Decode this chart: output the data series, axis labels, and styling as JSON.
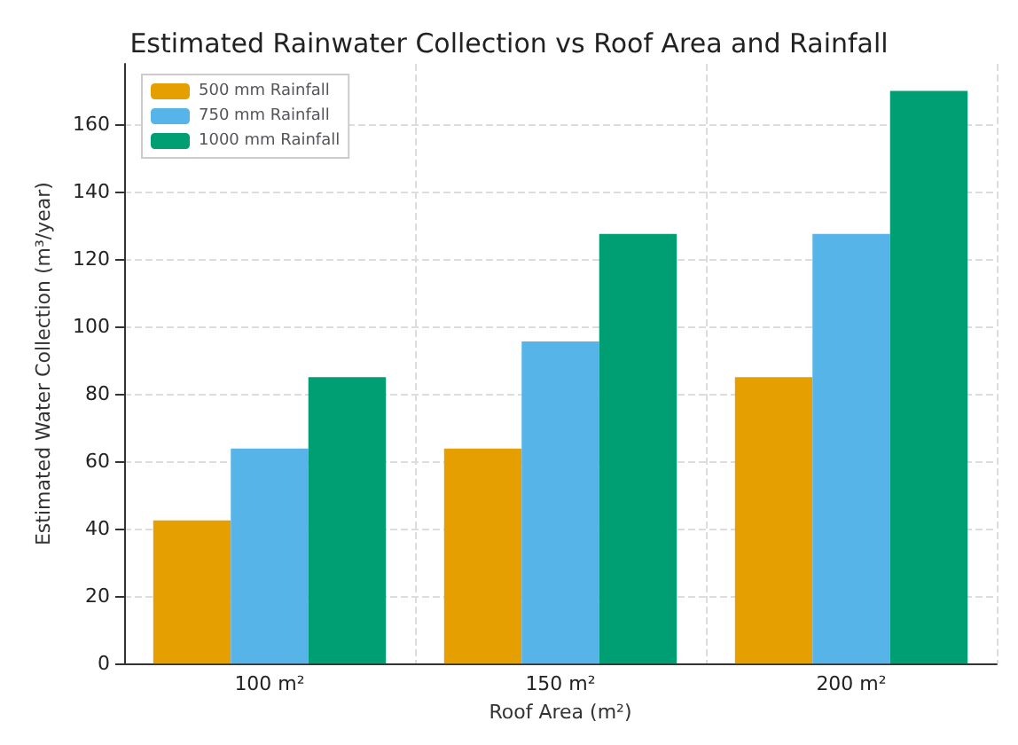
{
  "chart_data": {
    "type": "bar",
    "title": "Estimated Rainwater Collection vs Roof Area and Rainfall",
    "xlabel": "Roof Area (m²)",
    "ylabel": "Estimated Water Collection (m³/year)",
    "categories": [
      "100 m²",
      "150 m²",
      "200 m²"
    ],
    "series": [
      {
        "name": "500 mm Rainfall",
        "color": "#e69f00",
        "values": [
          42.5,
          63.8,
          85
        ]
      },
      {
        "name": "750 mm Rainfall",
        "color": "#56b4e9",
        "values": [
          63.8,
          95.6,
          127.5
        ]
      },
      {
        "name": "1000 mm Rainfall",
        "color": "#009e73",
        "values": [
          85,
          127.5,
          170
        ]
      }
    ],
    "ylim": [
      0,
      178
    ],
    "yticks": [
      0,
      20,
      40,
      60,
      80,
      100,
      120,
      140,
      160
    ],
    "grid": true,
    "legend": "top left"
  }
}
